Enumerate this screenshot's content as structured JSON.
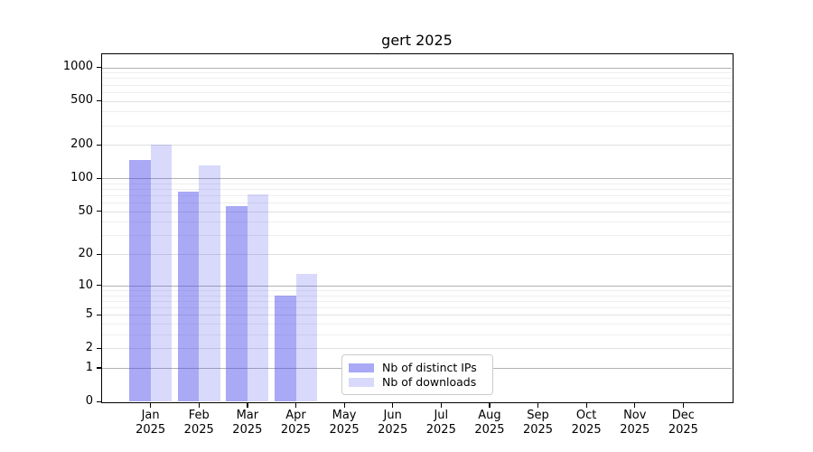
{
  "window": {
    "background": "#ffffff"
  },
  "chart_data": {
    "type": "bar",
    "title": "gert 2025",
    "categories": [
      {
        "month": "Jan",
        "year": "2025"
      },
      {
        "month": "Feb",
        "year": "2025"
      },
      {
        "month": "Mar",
        "year": "2025"
      },
      {
        "month": "Apr",
        "year": "2025"
      },
      {
        "month": "May",
        "year": "2025"
      },
      {
        "month": "Jun",
        "year": "2025"
      },
      {
        "month": "Jul",
        "year": "2025"
      },
      {
        "month": "Aug",
        "year": "2025"
      },
      {
        "month": "Sep",
        "year": "2025"
      },
      {
        "month": "Oct",
        "year": "2025"
      },
      {
        "month": "Nov",
        "year": "2025"
      },
      {
        "month": "Dec",
        "year": "2025"
      }
    ],
    "series": [
      {
        "name": "Nb of distinct IPs",
        "color": "rgba(64,64,235,0.45)",
        "color_hex_on_white": "#a9a9f6",
        "values": [
          146,
          75,
          56,
          8,
          0,
          0,
          0,
          0,
          0,
          0,
          0,
          0
        ]
      },
      {
        "name": "Nb of downloads",
        "color": "rgba(64,64,235,0.20)",
        "color_hex_on_white": "#d9d9fa",
        "values": [
          200,
          130,
          72,
          13,
          0,
          0,
          0,
          0,
          0,
          0,
          0,
          0
        ]
      }
    ],
    "yscale": "log10(value+1)",
    "ylim": [
      0,
      1311
    ],
    "yticks": [
      0,
      1,
      2,
      5,
      10,
      20,
      50,
      100,
      200,
      500,
      1000
    ],
    "xlabel": "",
    "ylabel": "",
    "grid": "horizontal major and minor gridlines",
    "legend_position": "inside lower middle"
  }
}
